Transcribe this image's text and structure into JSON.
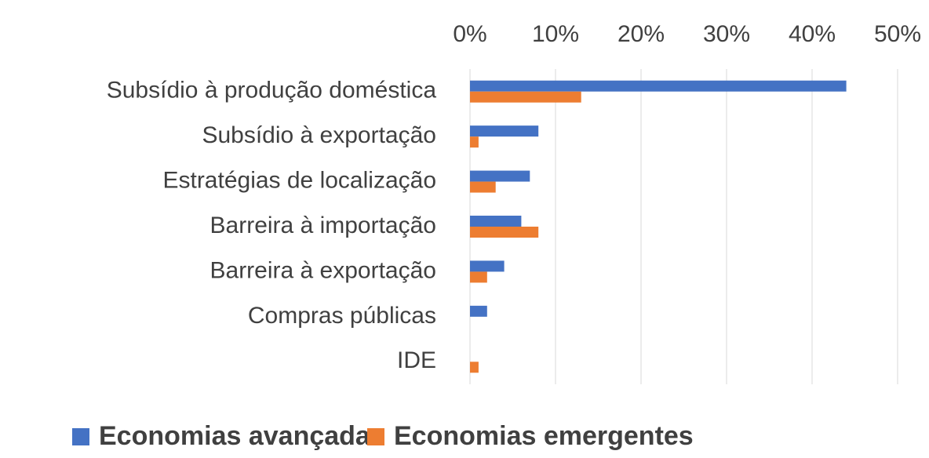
{
  "chart_data": {
    "type": "bar",
    "orientation": "horizontal",
    "categories": [
      "Subsídio à produção doméstica",
      "Subsídio à exportação",
      "Estratégias de localização",
      "Barreira à importação",
      "Barreira à exportação",
      "Compras públicas",
      "IDE"
    ],
    "series": [
      {
        "name": "Economias avançadas",
        "color": "#4472c4",
        "values": [
          44,
          8,
          7,
          6,
          4,
          2,
          0
        ]
      },
      {
        "name": "Economias emergentes",
        "color": "#ed7d31",
        "values": [
          13,
          1,
          3,
          8,
          2,
          0,
          1
        ]
      }
    ],
    "xlim": [
      0,
      50
    ],
    "xticks": [
      {
        "value": 0,
        "label": "0%"
      },
      {
        "value": 10,
        "label": "10%"
      },
      {
        "value": 20,
        "label": "20%"
      },
      {
        "value": 30,
        "label": "30%"
      },
      {
        "value": 40,
        "label": "40%"
      },
      {
        "value": 50,
        "label": "50%"
      }
    ],
    "grid": true,
    "legend": "bottom"
  }
}
